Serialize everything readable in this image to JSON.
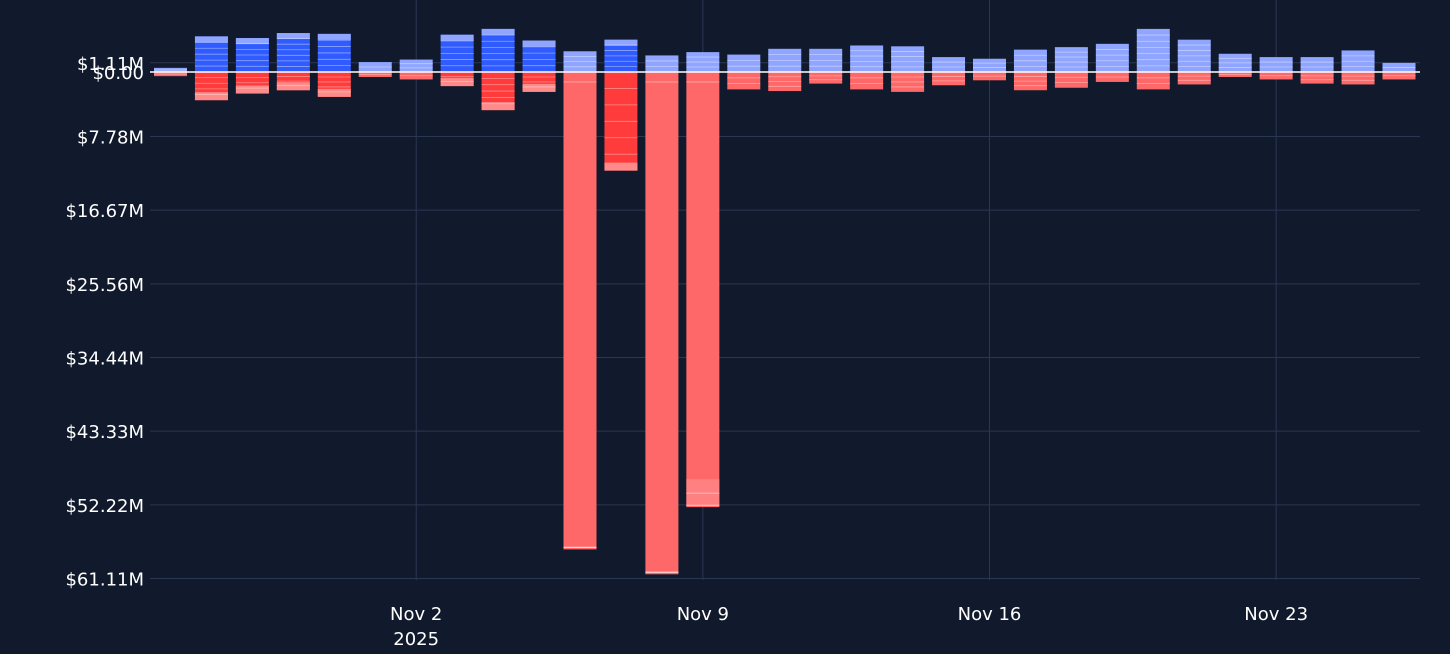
{
  "colors": {
    "background": "#111a2c",
    "grid": "#2a3752",
    "zero_line": "#ffffff",
    "buy_strong": "#2f5bff",
    "buy_light": "#8fa5ff",
    "sell_strong": "#ff3b3b",
    "sell_light": "#ff6868",
    "segment_line": "#ffffff"
  },
  "chart_data": {
    "type": "bar",
    "title": "",
    "xlabel": "",
    "ylabel": "",
    "barmode": "relative",
    "grid": true,
    "ylim": [
      -62.5,
      5.0
    ],
    "y_ticks": [
      {
        "value": 1.11,
        "label": "$1.11M"
      },
      {
        "value": 0,
        "label": "$0.00"
      },
      {
        "value": -7.78,
        "label": "$7.78M"
      },
      {
        "value": -16.67,
        "label": "$16.67M"
      },
      {
        "value": -25.56,
        "label": "$25.56M"
      },
      {
        "value": -34.44,
        "label": "$34.44M"
      },
      {
        "value": -43.33,
        "label": "$43.33M"
      },
      {
        "value": -52.22,
        "label": "$52.22M"
      },
      {
        "value": -61.11,
        "label": "$61.11M"
      }
    ],
    "x_ticks": [
      {
        "date": "2025-11-02",
        "label": "Nov 2",
        "sublabel": "2025"
      },
      {
        "date": "2025-11-09",
        "label": "Nov 9",
        "sublabel": ""
      },
      {
        "date": "2025-11-16",
        "label": "Nov 16",
        "sublabel": ""
      },
      {
        "date": "2025-11-23",
        "label": "Nov 23",
        "sublabel": ""
      }
    ],
    "x": [
      "2025-10-27",
      "2025-10-28",
      "2025-10-29",
      "2025-10-30",
      "2025-10-31",
      "2025-11-01",
      "2025-11-02",
      "2025-11-03",
      "2025-11-04",
      "2025-11-05",
      "2025-11-06",
      "2025-11-07",
      "2025-11-08",
      "2025-11-09",
      "2025-11-10",
      "2025-11-11",
      "2025-11-12",
      "2025-11-13",
      "2025-11-14",
      "2025-11-15",
      "2025-11-16",
      "2025-11-17",
      "2025-11-18",
      "2025-11-19",
      "2025-11-20",
      "2025-11-21",
      "2025-11-22",
      "2025-11-23",
      "2025-11-24",
      "2025-11-25",
      "2025-11-26"
    ],
    "positive": [
      0.5,
      4.3,
      4.1,
      4.7,
      4.6,
      1.2,
      1.5,
      4.5,
      5.2,
      3.8,
      2.5,
      3.9,
      2.0,
      2.4,
      2.1,
      2.8,
      2.8,
      3.2,
      3.1,
      1.8,
      1.6,
      2.7,
      3.0,
      3.4,
      5.2,
      3.9,
      2.2,
      1.8,
      1.8,
      2.6,
      1.1
    ],
    "negative": [
      -0.5,
      -3.4,
      -2.6,
      -2.2,
      -3.0,
      -0.6,
      -0.9,
      -1.7,
      -4.6,
      -2.4,
      -57.6,
      -11.9,
      -60.6,
      -52.5,
      -2.1,
      -2.3,
      -1.4,
      -2.1,
      -2.4,
      -1.6,
      -1.0,
      -2.2,
      -1.9,
      -1.2,
      -2.1,
      -1.5,
      -0.6,
      -0.9,
      -1.4,
      -1.5,
      -0.9
    ],
    "intense": [
      false,
      true,
      true,
      true,
      true,
      false,
      false,
      true,
      true,
      true,
      false,
      true,
      false,
      false,
      false,
      false,
      false,
      false,
      false,
      false,
      false,
      false,
      false,
      false,
      false,
      false,
      false,
      false,
      false,
      false,
      false
    ]
  }
}
